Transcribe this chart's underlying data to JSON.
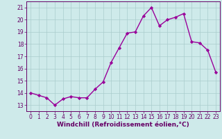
{
  "x": [
    0,
    1,
    2,
    3,
    4,
    5,
    6,
    7,
    8,
    9,
    10,
    11,
    12,
    13,
    14,
    15,
    16,
    17,
    18,
    19,
    20,
    21,
    22,
    23
  ],
  "y": [
    14.0,
    13.8,
    13.6,
    13.0,
    13.5,
    13.7,
    13.6,
    13.6,
    14.3,
    14.9,
    16.5,
    17.7,
    18.9,
    19.0,
    20.3,
    21.0,
    19.5,
    20.0,
    20.2,
    20.5,
    18.2,
    18.1,
    17.5,
    15.7
  ],
  "line_color": "#990099",
  "marker": "D",
  "markersize": 2.2,
  "linewidth": 1.0,
  "background_color": "#ceeaea",
  "grid_color": "#aacccc",
  "xlabel": "Windchill (Refroidissement éolien,°C)",
  "xlabel_color": "#660066",
  "ylim": [
    12.5,
    21.5
  ],
  "xlim": [
    -0.5,
    23.5
  ],
  "yticks": [
    13,
    14,
    15,
    16,
    17,
    18,
    19,
    20,
    21
  ],
  "xticks": [
    0,
    1,
    2,
    3,
    4,
    5,
    6,
    7,
    8,
    9,
    10,
    11,
    12,
    13,
    14,
    15,
    16,
    17,
    18,
    19,
    20,
    21,
    22,
    23
  ],
  "tick_color": "#660066",
  "tick_fontsize": 5.5,
  "xlabel_fontsize": 6.5,
  "spine_color": "#660066"
}
